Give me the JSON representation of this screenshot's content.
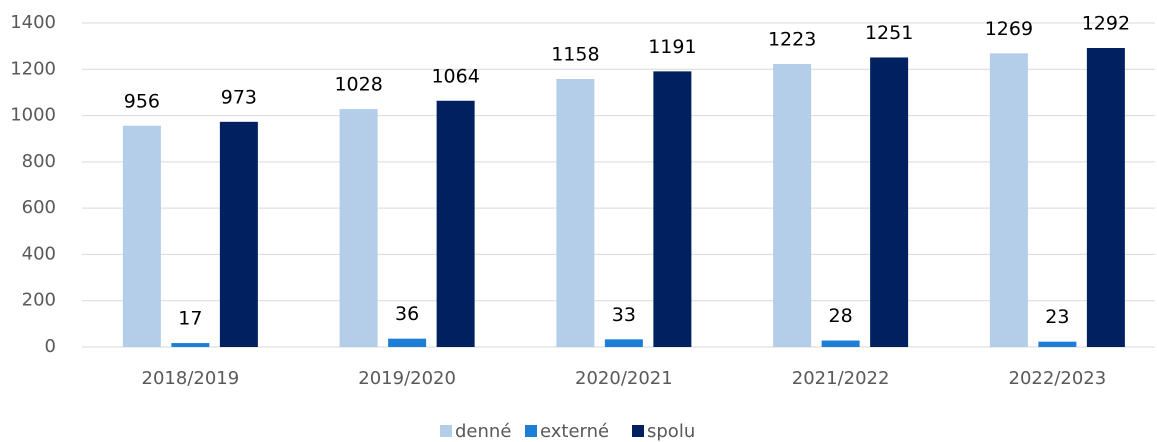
{
  "chart_data": {
    "type": "bar",
    "categories": [
      "2018/2019",
      "2019/2020",
      "2020/2021",
      "2021/2022",
      "2022/2023"
    ],
    "series": [
      {
        "name": "denné",
        "color": "#b4cde8",
        "values": [
          956,
          1028,
          1158,
          1223,
          1269
        ]
      },
      {
        "name": "externé",
        "color": "#1c7ed6",
        "values": [
          17,
          36,
          33,
          28,
          23
        ]
      },
      {
        "name": "spolu",
        "color": "#002060",
        "values": [
          973,
          1064,
          1191,
          1251,
          1292
        ]
      }
    ],
    "ylim": [
      0,
      1400
    ],
    "yticks": [
      0,
      200,
      400,
      600,
      800,
      1000,
      1200,
      1400
    ],
    "grid": true,
    "legend": "bottom"
  }
}
